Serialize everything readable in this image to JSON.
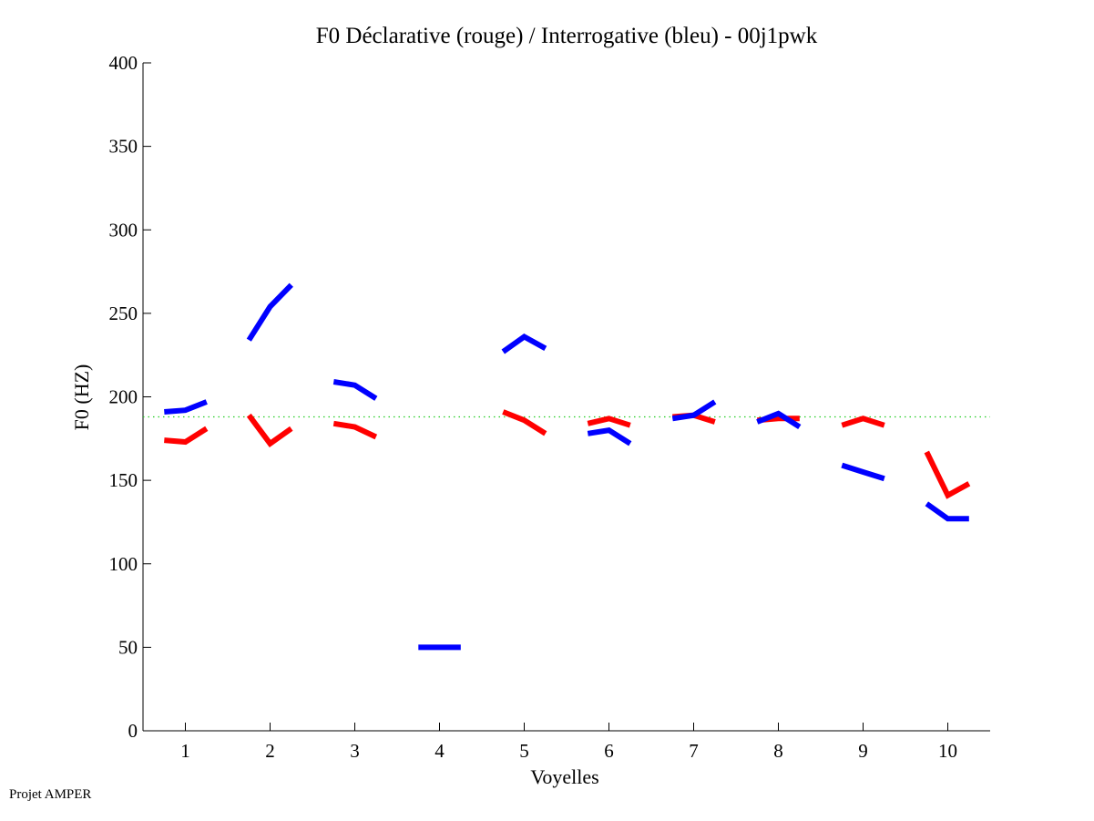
{
  "chart_data": {
    "type": "line",
    "title": "F0 Déclarative (rouge) / Interrogative (bleu) - 00j1pwk",
    "xlabel": "Voyelles",
    "ylabel": "F0 (HZ)",
    "xlim": [
      0.5,
      10.5
    ],
    "ylim": [
      0,
      400
    ],
    "xticks": [
      1,
      2,
      3,
      4,
      5,
      6,
      7,
      8,
      9,
      10
    ],
    "yticks": [
      0,
      50,
      100,
      150,
      200,
      250,
      300,
      350,
      400
    ],
    "grid": false,
    "point_offsets": [
      -0.25,
      0,
      0.25
    ],
    "reference_line": {
      "y": 188,
      "color": "#22cc22",
      "style": "dotted"
    },
    "series": [
      {
        "name": "Déclarative (rouge)",
        "color": "#ff0000",
        "segments": [
          {
            "vowel": 1,
            "values": [
              174,
              173,
              181
            ]
          },
          {
            "vowel": 2,
            "values": [
              189,
              172,
              181
            ]
          },
          {
            "vowel": 3,
            "values": [
              184,
              182,
              176
            ]
          },
          {
            "vowel": 5,
            "values": [
              191,
              186,
              178
            ]
          },
          {
            "vowel": 6,
            "values": [
              184,
              187,
              183
            ]
          },
          {
            "vowel": 7,
            "values": [
              188,
              189,
              185
            ]
          },
          {
            "vowel": 8,
            "values": [
              186,
              187,
              187
            ]
          },
          {
            "vowel": 9,
            "values": [
              183,
              187,
              183
            ]
          },
          {
            "vowel": 10,
            "values": [
              167,
              141,
              148
            ]
          }
        ]
      },
      {
        "name": "Interrogative (bleu)",
        "color": "#0000ff",
        "segments": [
          {
            "vowel": 1,
            "values": [
              191,
              192,
              197
            ]
          },
          {
            "vowel": 2,
            "values": [
              234,
              254,
              267
            ]
          },
          {
            "vowel": 3,
            "values": [
              209,
              207,
              199
            ]
          },
          {
            "vowel": 4,
            "values": [
              50,
              50,
              50
            ]
          },
          {
            "vowel": 5,
            "values": [
              227,
              236,
              229
            ]
          },
          {
            "vowel": 6,
            "values": [
              178,
              180,
              172
            ]
          },
          {
            "vowel": 7,
            "values": [
              187,
              189,
              197
            ]
          },
          {
            "vowel": 8,
            "values": [
              185,
              190,
              182
            ]
          },
          {
            "vowel": 9,
            "values": [
              159,
              155,
              151
            ]
          },
          {
            "vowel": 10,
            "values": [
              136,
              127,
              127
            ]
          }
        ]
      }
    ]
  },
  "footer": "Projet AMPER"
}
